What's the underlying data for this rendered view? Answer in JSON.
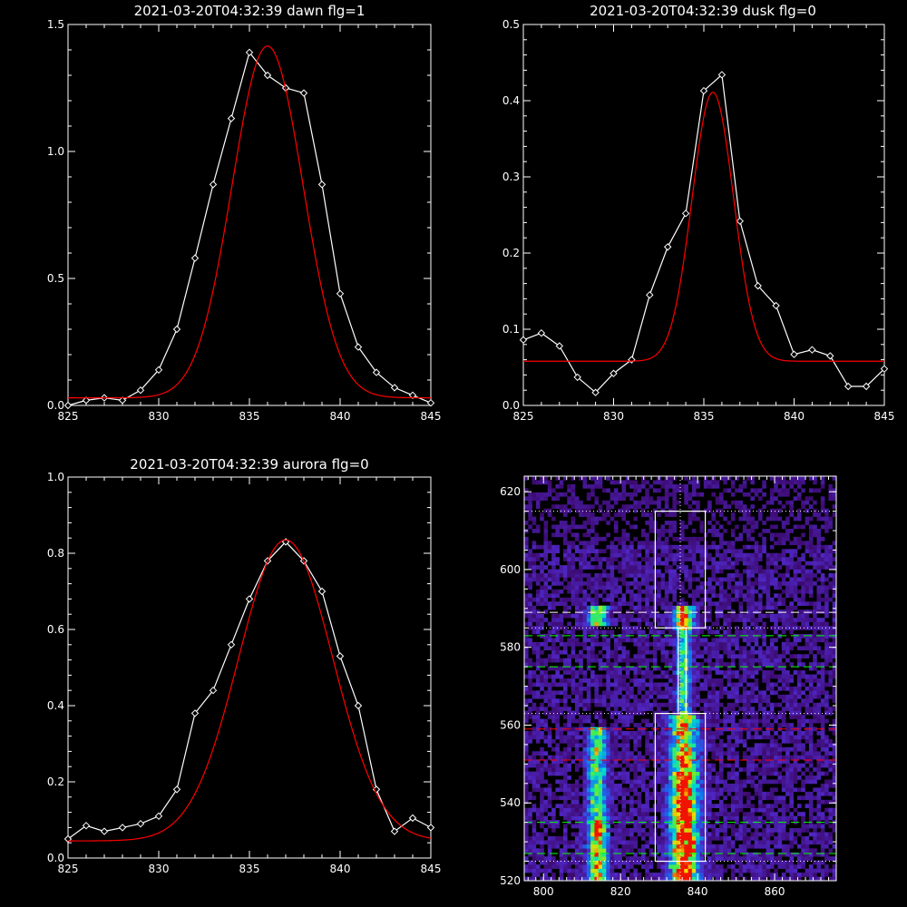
{
  "chart_data": [
    {
      "type": "line",
      "title": "2021-03-20T04:32:39 dawn flg=1",
      "xlim": [
        825,
        845
      ],
      "ylim": [
        0.0,
        1.5
      ],
      "xticks": [
        825,
        830,
        835,
        840,
        845
      ],
      "yticks": [
        "0.0",
        "0.5",
        "1.0",
        "1.5"
      ],
      "series": [
        {
          "style": "data",
          "color": "#ffffff",
          "marker": "diamond",
          "x": [
            825,
            826,
            827,
            828,
            829,
            830,
            831,
            832,
            833,
            834,
            835,
            836,
            837,
            838,
            839,
            840,
            841,
            842,
            843,
            844,
            845
          ],
          "y": [
            0.0,
            0.02,
            0.03,
            0.02,
            0.06,
            0.14,
            0.3,
            0.58,
            0.87,
            1.13,
            1.39,
            1.3,
            1.25,
            1.23,
            0.87,
            0.44,
            0.23,
            0.13,
            0.07,
            0.04,
            0.01
          ]
        },
        {
          "style": "fit",
          "color": "#ff0000",
          "model": "gaussian",
          "center": 836.0,
          "sigma": 1.95,
          "amplitude": 1.385,
          "baseline": 0.03
        }
      ]
    },
    {
      "type": "line",
      "title": "2021-03-20T04:32:39 dusk flg=0",
      "xlim": [
        825,
        845
      ],
      "ylim": [
        0.0,
        0.5
      ],
      "xticks": [
        825,
        830,
        835,
        840,
        845
      ],
      "yticks": [
        "0.0",
        "0.1",
        "0.2",
        "0.3",
        "0.4",
        "0.5"
      ],
      "series": [
        {
          "style": "data",
          "color": "#ffffff",
          "marker": "diamond",
          "x": [
            825,
            826,
            827,
            828,
            829,
            830,
            831,
            832,
            833,
            834,
            835,
            836,
            837,
            838,
            839,
            840,
            841,
            842,
            843,
            844,
            845
          ],
          "y": [
            0.086,
            0.095,
            0.078,
            0.037,
            0.017,
            0.042,
            0.06,
            0.145,
            0.208,
            0.252,
            0.413,
            0.434,
            0.242,
            0.157,
            0.131,
            0.067,
            0.073,
            0.065,
            0.025,
            0.025,
            0.048
          ]
        },
        {
          "style": "fit",
          "color": "#ff0000",
          "model": "gaussian",
          "center": 835.5,
          "sigma": 1.15,
          "amplitude": 0.353,
          "baseline": 0.058
        }
      ]
    },
    {
      "type": "line",
      "title": "2021-03-20T04:32:39 aurora flg=0",
      "xlim": [
        825,
        845
      ],
      "ylim": [
        0.0,
        1.0
      ],
      "xticks": [
        825,
        830,
        835,
        840,
        845
      ],
      "yticks": [
        "0.0",
        "0.2",
        "0.4",
        "0.6",
        "0.8",
        "1.0"
      ],
      "series": [
        {
          "style": "data",
          "color": "#ffffff",
          "marker": "diamond",
          "x": [
            825,
            826,
            827,
            828,
            829,
            830,
            831,
            832,
            833,
            834,
            835,
            836,
            837,
            838,
            839,
            840,
            841,
            842,
            843,
            844,
            845
          ],
          "y": [
            0.05,
            0.085,
            0.07,
            0.08,
            0.09,
            0.11,
            0.18,
            0.38,
            0.44,
            0.56,
            0.68,
            0.78,
            0.83,
            0.78,
            0.7,
            0.53,
            0.4,
            0.18,
            0.07,
            0.105,
            0.08
          ]
        },
        {
          "style": "fit",
          "color": "#ff0000",
          "model": "gaussian",
          "center": 837.0,
          "sigma": 2.6,
          "amplitude": 0.79,
          "baseline": 0.045
        }
      ]
    },
    {
      "type": "heatmap",
      "title": "",
      "xlim": [
        795,
        876
      ],
      "ylim": [
        520,
        624
      ],
      "xticks": [
        800,
        820,
        840,
        860
      ],
      "yticks": [
        520,
        540,
        560,
        580,
        600,
        620
      ],
      "emission_x": [
        814,
        836.5
      ],
      "vertical_marker_x": 835.5,
      "boxes": [
        {
          "x0": 829,
          "x1": 842,
          "y0": 585,
          "y1": 615,
          "color": "#ffffff"
        },
        {
          "x0": 829,
          "x1": 842,
          "y0": 525,
          "y1": 563,
          "color": "#ffffff"
        }
      ],
      "connector": {
        "x0": 835,
        "x1": 837,
        "y0": 563,
        "y1": 585,
        "color": "#ffffff"
      },
      "dotted_lines_y": [
        615,
        585,
        563,
        525
      ],
      "dashed_lines": [
        {
          "y": 589,
          "color": "#ffffff"
        },
        {
          "y": 583,
          "color": "#00ff00"
        },
        {
          "y": 575,
          "color": "#00ff00"
        },
        {
          "y": 559,
          "color": "#ff0000"
        },
        {
          "y": 551,
          "color": "#ff0000"
        },
        {
          "y": 535,
          "color": "#00ff00"
        },
        {
          "y": 527,
          "color": "#00ff00"
        }
      ]
    }
  ]
}
